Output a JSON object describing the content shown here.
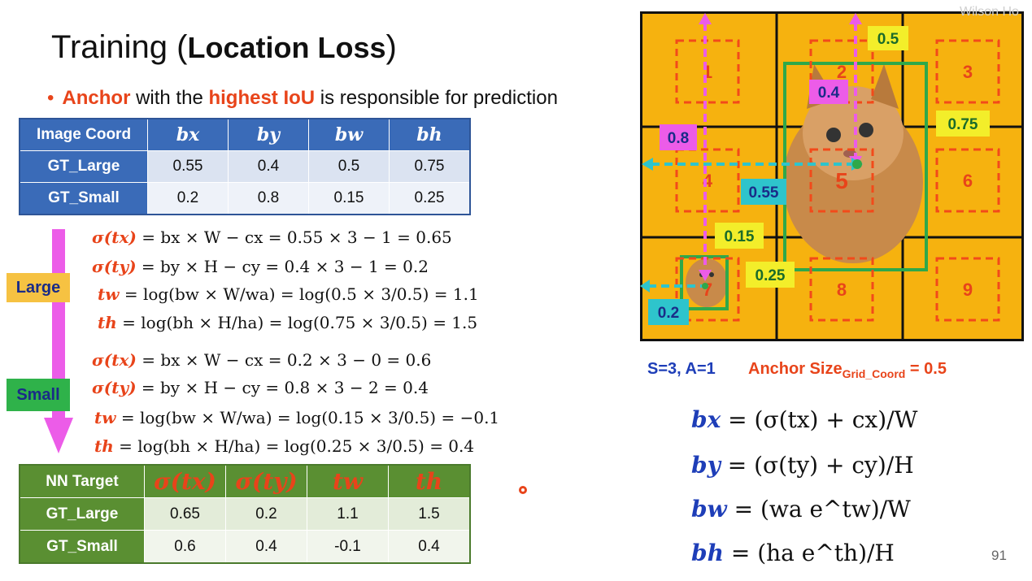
{
  "slide": {
    "title_plain": "Training (",
    "title_bold": "Location Loss",
    "title_close": ")",
    "bullet_1": "Anchor",
    "bullet_2": " with the ",
    "bullet_3": "highest IoU",
    "bullet_4": " is responsible for prediction",
    "page_number": "91",
    "watermark": "Wilson Ho"
  },
  "image_coord_table": {
    "header": [
      "Image Coord",
      "bx",
      "by",
      "bw",
      "bh"
    ],
    "rows": [
      {
        "label": "GT_Large",
        "values": [
          "0.55",
          "0.4",
          "0.5",
          "0.75"
        ]
      },
      {
        "label": "GT_Small",
        "values": [
          "0.2",
          "0.8",
          "0.15",
          "0.25"
        ]
      }
    ]
  },
  "labels": {
    "large": "Large",
    "small": "Small"
  },
  "equations_large": [
    {
      "lhs": "σ(tx)",
      "rhs": " = bx × W − cx  = 0.55 × 3 − 1 = 0.65"
    },
    {
      "lhs": "σ(ty)",
      "rhs": " = by × H − cy  = 0.4 × 3 − 1 = 0.2"
    },
    {
      "lhs": "tw",
      "rhs": " = log(bw × W/wa) = log(0.5 × 3/0.5) = 1.1"
    },
    {
      "lhs": "th",
      "rhs": " = log(bh × H/ha) = log(0.75 × 3/0.5) = 1.5"
    }
  ],
  "equations_small": [
    {
      "lhs": "σ(tx)",
      "rhs": " = bx × W − cx = 0.2 × 3 − 0 = 0.6"
    },
    {
      "lhs": "σ(ty)",
      "rhs": " = by × H − cy  = 0.8 × 3 − 2 = 0.4"
    },
    {
      "lhs": "tw",
      "rhs": " = log(bw × W/wa) = log(0.15 × 3/0.5) = −0.1"
    },
    {
      "lhs": "th",
      "rhs": " = log(bh × H/ha) = log(0.25 × 3/0.5) = 0.4"
    }
  ],
  "nn_target_table": {
    "header": [
      "NN Target",
      "σ(tx)",
      "σ(ty)",
      "tw",
      "th"
    ],
    "rows": [
      {
        "label": "GT_Large",
        "values": [
          "0.65",
          "0.2",
          "1.1",
          "1.5"
        ]
      },
      {
        "label": "GT_Small",
        "values": [
          "0.6",
          "0.4",
          "-0.1",
          "0.4"
        ]
      }
    ]
  },
  "grid": {
    "cells": [
      "1",
      "2",
      "3",
      "4",
      "5",
      "6",
      "7",
      "8",
      "9"
    ],
    "tags": {
      "t05": "0.5",
      "t04": "0.4",
      "t075": "0.75",
      "t08": "0.8",
      "t055": "0.55",
      "t015": "0.15",
      "t025": "0.25",
      "t02": "0.2"
    },
    "colors": {
      "cell": "#f6b20f",
      "anchor": "#f24a1a",
      "gt": "#2fa84a",
      "magenta": "#ec5ce8",
      "cyan": "#2ec4cc"
    }
  },
  "params": {
    "s_a": "S=3, A=1",
    "anchor_size": "Anchor Size",
    "anchor_sub": "Grid_Coord",
    "anchor_val": " = 0.5"
  },
  "formulas": [
    {
      "lhs": "bx",
      "rhs": "(σ(tx) + cx)/W"
    },
    {
      "lhs": "by",
      "rhs": "(σ(ty) + cy)/H"
    },
    {
      "lhs": "bw",
      "rhs": "(wa e^tw)/W"
    },
    {
      "lhs": "bh",
      "rhs": "(ha e^th)/H"
    }
  ]
}
